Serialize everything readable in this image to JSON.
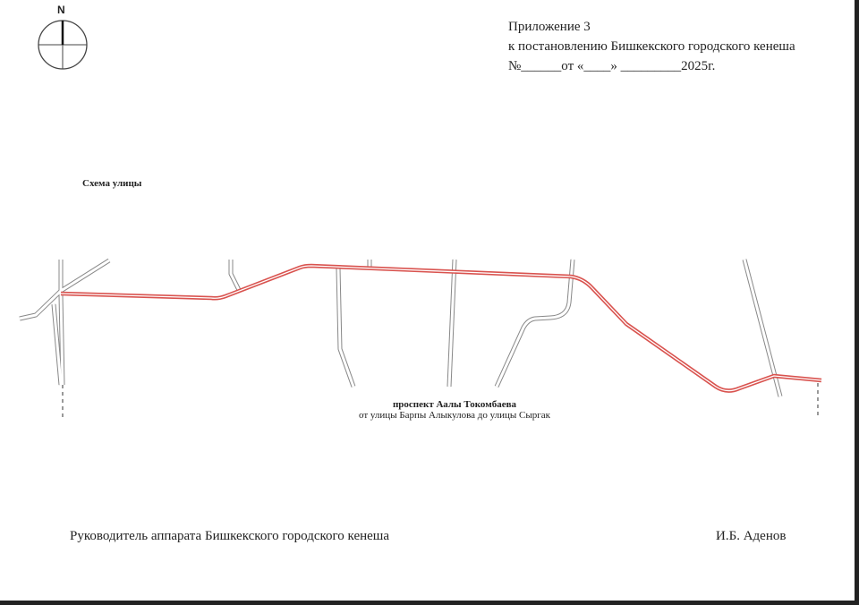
{
  "compass": {
    "label": "N",
    "icon": "north-arrow-icon"
  },
  "header": {
    "line1": "Приложение   3",
    "line2": "к постановлению  Бишкекского городского кенеша",
    "line3": "№______от «____» _________2025г."
  },
  "scheme_title": "Схема улицы",
  "street": {
    "name": "проспект Аалы Токомбаева",
    "extent": "от улицы Барпы Алыкулова до улицы Сыргак",
    "route_color": "#d9534f"
  },
  "footer": {
    "position": "Руководитель аппарата Бишкекского городского кенеша",
    "signatory": "И.Б. Аденов"
  }
}
